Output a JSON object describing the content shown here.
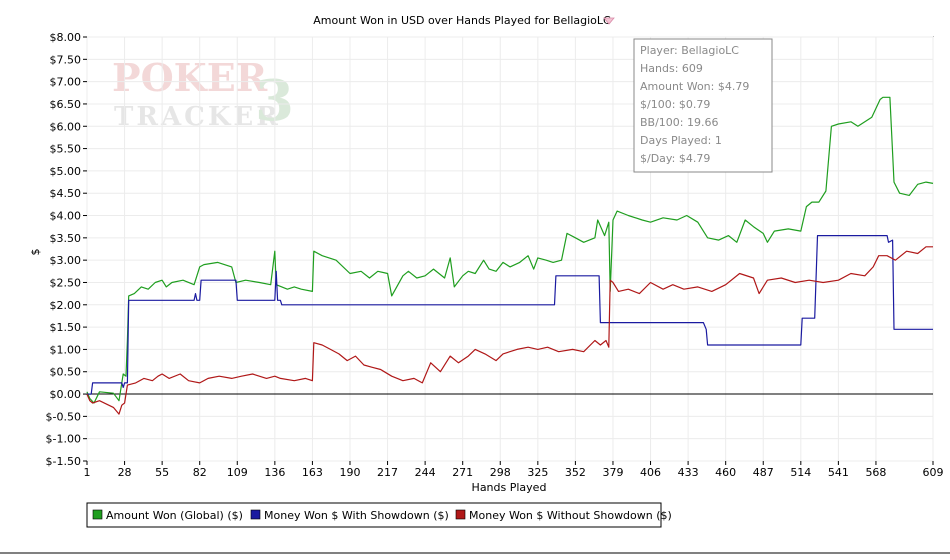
{
  "chart_data": {
    "type": "line",
    "title": "Amount Won in USD over Hands Played for BellagioLC",
    "xlabel": "Hands Played",
    "ylabel": "$",
    "xlim": [
      1,
      609
    ],
    "ylim": [
      -1.5,
      8.0
    ],
    "x_ticks": [
      "1",
      "28",
      "55",
      "82",
      "109",
      "136",
      "163",
      "190",
      "217",
      "244",
      "271",
      "298",
      "325",
      "352",
      "379",
      "406",
      "433",
      "460",
      "487",
      "514",
      "541",
      "568",
      "609"
    ],
    "y_ticks": [
      "$8.00",
      "$7.50",
      "$7.00",
      "$6.50",
      "$6.00",
      "$5.50",
      "$5.00",
      "$4.50",
      "$4.00",
      "$3.50",
      "$3.00",
      "$2.50",
      "$2.00",
      "$1.50",
      "$1.00",
      "$0.50",
      "$0.00",
      "$-0.50",
      "$-1.00",
      "$-1.50"
    ],
    "grid": true,
    "legend_position": "bottom-left",
    "series": [
      {
        "name": "Amount Won (Global) ($)",
        "color": "#1f9e1f",
        "points": [
          [
            1,
            0.05
          ],
          [
            3,
            -0.1
          ],
          [
            6,
            -0.2
          ],
          [
            10,
            0.05
          ],
          [
            20,
            0.02
          ],
          [
            24,
            -0.15
          ],
          [
            27,
            0.45
          ],
          [
            29,
            0.4
          ],
          [
            30,
            1.2
          ],
          [
            31,
            2.2
          ],
          [
            35,
            2.25
          ],
          [
            40,
            2.4
          ],
          [
            45,
            2.35
          ],
          [
            50,
            2.5
          ],
          [
            55,
            2.55
          ],
          [
            58,
            2.4
          ],
          [
            62,
            2.5
          ],
          [
            70,
            2.55
          ],
          [
            78,
            2.45
          ],
          [
            82,
            2.85
          ],
          [
            85,
            2.9
          ],
          [
            95,
            2.95
          ],
          [
            105,
            2.85
          ],
          [
            108,
            2.5
          ],
          [
            115,
            2.55
          ],
          [
            125,
            2.5
          ],
          [
            133,
            2.45
          ],
          [
            136,
            3.2
          ],
          [
            137,
            2.45
          ],
          [
            145,
            2.35
          ],
          [
            150,
            2.4
          ],
          [
            155,
            2.35
          ],
          [
            163,
            2.3
          ],
          [
            164,
            3.2
          ],
          [
            170,
            3.1
          ],
          [
            180,
            3.0
          ],
          [
            190,
            2.7
          ],
          [
            198,
            2.75
          ],
          [
            204,
            2.6
          ],
          [
            210,
            2.75
          ],
          [
            217,
            2.7
          ],
          [
            220,
            2.2
          ],
          [
            228,
            2.65
          ],
          [
            232,
            2.75
          ],
          [
            238,
            2.6
          ],
          [
            244,
            2.65
          ],
          [
            250,
            2.8
          ],
          [
            258,
            2.6
          ],
          [
            262,
            3.05
          ],
          [
            265,
            2.4
          ],
          [
            271,
            2.65
          ],
          [
            275,
            2.75
          ],
          [
            280,
            2.7
          ],
          [
            286,
            3.0
          ],
          [
            290,
            2.8
          ],
          [
            295,
            2.75
          ],
          [
            300,
            2.95
          ],
          [
            305,
            2.85
          ],
          [
            312,
            2.95
          ],
          [
            318,
            3.1
          ],
          [
            322,
            2.8
          ],
          [
            325,
            3.05
          ],
          [
            331,
            3.0
          ],
          [
            336,
            2.95
          ],
          [
            342,
            3.0
          ],
          [
            346,
            3.6
          ],
          [
            352,
            3.5
          ],
          [
            358,
            3.4
          ],
          [
            366,
            3.5
          ],
          [
            368,
            3.9
          ],
          [
            373,
            3.55
          ],
          [
            376,
            3.85
          ],
          [
            377,
            2.3
          ],
          [
            379,
            3.9
          ],
          [
            382,
            4.1
          ],
          [
            390,
            4.0
          ],
          [
            400,
            3.9
          ],
          [
            406,
            3.85
          ],
          [
            415,
            3.95
          ],
          [
            425,
            3.9
          ],
          [
            432,
            4.0
          ],
          [
            440,
            3.85
          ],
          [
            447,
            3.5
          ],
          [
            455,
            3.45
          ],
          [
            462,
            3.55
          ],
          [
            468,
            3.4
          ],
          [
            474,
            3.9
          ],
          [
            480,
            3.75
          ],
          [
            487,
            3.6
          ],
          [
            490,
            3.4
          ],
          [
            495,
            3.65
          ],
          [
            505,
            3.7
          ],
          [
            514,
            3.65
          ],
          [
            518,
            4.2
          ],
          [
            522,
            4.3
          ],
          [
            527,
            4.3
          ],
          [
            532,
            4.55
          ],
          [
            536,
            6.0
          ],
          [
            541,
            6.05
          ],
          [
            550,
            6.1
          ],
          [
            555,
            6.0
          ],
          [
            565,
            6.2
          ],
          [
            571,
            6.6
          ],
          [
            573,
            6.65
          ],
          [
            578,
            6.65
          ],
          [
            580,
            5.4
          ],
          [
            581,
            4.75
          ],
          [
            585,
            4.5
          ],
          [
            592,
            4.45
          ],
          [
            598,
            4.7
          ],
          [
            604,
            4.75
          ],
          [
            609,
            4.72
          ]
        ]
      },
      {
        "name": "Money Won $ With Showdown ($)",
        "color": "#1a1aa0",
        "points": [
          [
            1,
            0.0
          ],
          [
            4,
            0.0
          ],
          [
            5,
            0.25
          ],
          [
            26,
            0.25
          ],
          [
            27,
            0.15
          ],
          [
            28,
            0.25
          ],
          [
            30,
            0.25
          ],
          [
            31,
            2.1
          ],
          [
            78,
            2.1
          ],
          [
            79,
            2.25
          ],
          [
            80,
            2.1
          ],
          [
            82,
            2.1
          ],
          [
            83,
            2.55
          ],
          [
            108,
            2.55
          ],
          [
            109,
            2.1
          ],
          [
            136,
            2.1
          ],
          [
            137,
            2.75
          ],
          [
            138,
            2.1
          ],
          [
            140,
            2.1
          ],
          [
            141,
            2.0
          ],
          [
            337,
            2.0
          ],
          [
            338,
            2.65
          ],
          [
            369,
            2.65
          ],
          [
            370,
            1.6
          ],
          [
            444,
            1.6
          ],
          [
            446,
            1.45
          ],
          [
            447,
            1.1
          ],
          [
            514,
            1.1
          ],
          [
            515,
            1.7
          ],
          [
            524,
            1.7
          ],
          [
            526,
            3.55
          ],
          [
            576,
            3.55
          ],
          [
            577,
            3.4
          ],
          [
            580,
            3.45
          ],
          [
            581,
            1.45
          ],
          [
            609,
            1.45
          ]
        ]
      },
      {
        "name": "Money Won $ Without Showdown ($)",
        "color": "#b01818",
        "points": [
          [
            1,
            0.0
          ],
          [
            3,
            -0.15
          ],
          [
            5,
            -0.2
          ],
          [
            10,
            -0.15
          ],
          [
            20,
            -0.3
          ],
          [
            24,
            -0.45
          ],
          [
            26,
            -0.25
          ],
          [
            28,
            -0.2
          ],
          [
            30,
            0.2
          ],
          [
            36,
            0.25
          ],
          [
            42,
            0.35
          ],
          [
            48,
            0.3
          ],
          [
            52,
            0.4
          ],
          [
            55,
            0.45
          ],
          [
            60,
            0.35
          ],
          [
            68,
            0.45
          ],
          [
            74,
            0.3
          ],
          [
            82,
            0.25
          ],
          [
            88,
            0.35
          ],
          [
            96,
            0.4
          ],
          [
            105,
            0.35
          ],
          [
            112,
            0.4
          ],
          [
            120,
            0.45
          ],
          [
            130,
            0.35
          ],
          [
            136,
            0.4
          ],
          [
            140,
            0.35
          ],
          [
            150,
            0.3
          ],
          [
            158,
            0.35
          ],
          [
            163,
            0.3
          ],
          [
            164,
            1.15
          ],
          [
            170,
            1.1
          ],
          [
            176,
            1.0
          ],
          [
            182,
            0.9
          ],
          [
            188,
            0.75
          ],
          [
            194,
            0.85
          ],
          [
            200,
            0.65
          ],
          [
            206,
            0.6
          ],
          [
            212,
            0.55
          ],
          [
            220,
            0.4
          ],
          [
            228,
            0.3
          ],
          [
            236,
            0.35
          ],
          [
            242,
            0.25
          ],
          [
            248,
            0.7
          ],
          [
            255,
            0.5
          ],
          [
            262,
            0.85
          ],
          [
            268,
            0.7
          ],
          [
            275,
            0.85
          ],
          [
            280,
            1.0
          ],
          [
            287,
            0.9
          ],
          [
            295,
            0.75
          ],
          [
            300,
            0.9
          ],
          [
            310,
            1.0
          ],
          [
            318,
            1.05
          ],
          [
            325,
            1.0
          ],
          [
            332,
            1.05
          ],
          [
            340,
            0.95
          ],
          [
            350,
            1.0
          ],
          [
            358,
            0.95
          ],
          [
            366,
            1.2
          ],
          [
            370,
            1.1
          ],
          [
            374,
            1.2
          ],
          [
            376,
            1.05
          ],
          [
            377,
            2.55
          ],
          [
            379,
            2.5
          ],
          [
            383,
            2.3
          ],
          [
            390,
            2.35
          ],
          [
            398,
            2.25
          ],
          [
            406,
            2.5
          ],
          [
            415,
            2.35
          ],
          [
            422,
            2.45
          ],
          [
            430,
            2.35
          ],
          [
            440,
            2.4
          ],
          [
            450,
            2.3
          ],
          [
            460,
            2.45
          ],
          [
            470,
            2.7
          ],
          [
            480,
            2.6
          ],
          [
            484,
            2.25
          ],
          [
            490,
            2.55
          ],
          [
            500,
            2.6
          ],
          [
            510,
            2.5
          ],
          [
            520,
            2.55
          ],
          [
            530,
            2.5
          ],
          [
            541,
            2.55
          ],
          [
            550,
            2.7
          ],
          [
            560,
            2.65
          ],
          [
            566,
            2.85
          ],
          [
            570,
            3.1
          ],
          [
            576,
            3.1
          ],
          [
            582,
            3.0
          ],
          [
            590,
            3.2
          ],
          [
            598,
            3.15
          ],
          [
            604,
            3.3
          ],
          [
            609,
            3.3
          ]
        ]
      }
    ]
  },
  "stats_box": {
    "lines": [
      "Player: BellagioLC",
      "Hands: 609",
      "Amount Won: $4.79",
      "$/100: $0.79",
      "BB/100: 19.66",
      "Days Played: 1",
      "$/Day: $4.79"
    ]
  },
  "watermark": {
    "line1": "POKER",
    "line2": "TRACKER",
    "number": "3"
  }
}
